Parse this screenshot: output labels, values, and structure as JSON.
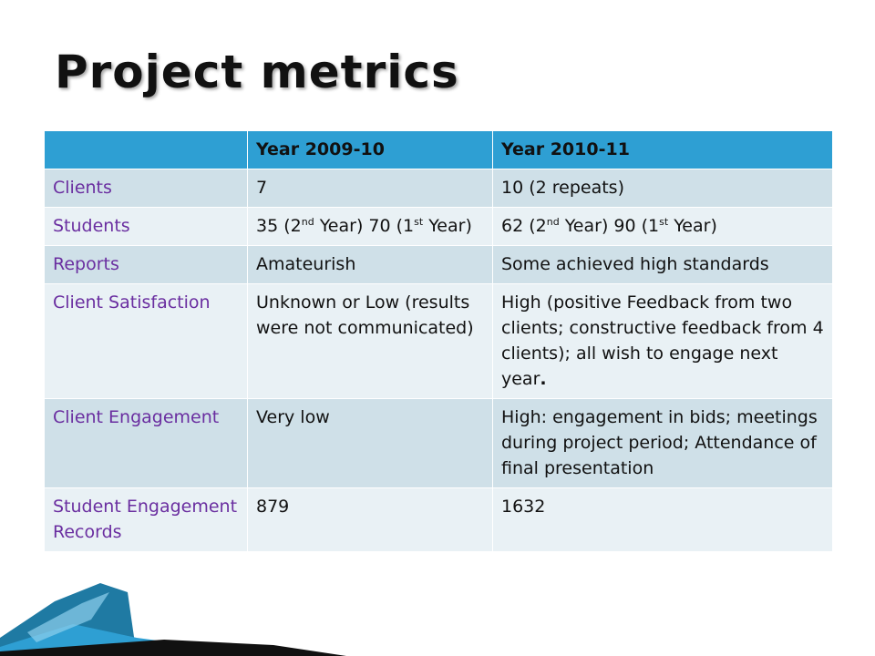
{
  "title": "Project metrics",
  "table": {
    "headers": [
      "",
      "Year 2009-10",
      "Year 2010-11"
    ],
    "rows": [
      {
        "label": "Clients",
        "col1": "7",
        "col2": "10 (2 repeats)"
      },
      {
        "label": "Students",
        "col1": {
          "a": "35 (2",
          "a_sup": "nd",
          "b": " Year) 70 (1",
          "b_sup": "st",
          "c": " Year)"
        },
        "col2": {
          "a": "62 (2",
          "a_sup": "nd",
          "b": " Year) 90 (1",
          "b_sup": "st",
          "c": " Year)"
        }
      },
      {
        "label": "Reports",
        "col1": "Amateurish",
        "col2": "Some achieved high standards"
      },
      {
        "label": "Client Satisfaction",
        "col1": "Unknown or Low (results were not communicated)",
        "col2": {
          "text": "High (positive Feedback from two clients; constructive feedback from 4 clients); all wish to engage next year",
          "end": "."
        }
      },
      {
        "label": "Client Engagement",
        "col1": "Very low",
        "col2": "High: engagement in bids; meetings during project period; Attendance of final presentation"
      },
      {
        "label": "Student Engagement Records",
        "col1": "879",
        "col2": "1632"
      }
    ]
  },
  "colors": {
    "header": "#2e9fd3",
    "row_dark": "#cfe0e8",
    "row_light": "#e9f1f5",
    "label_text": "#6a2ea0",
    "decoration": "#2a8bb5"
  }
}
